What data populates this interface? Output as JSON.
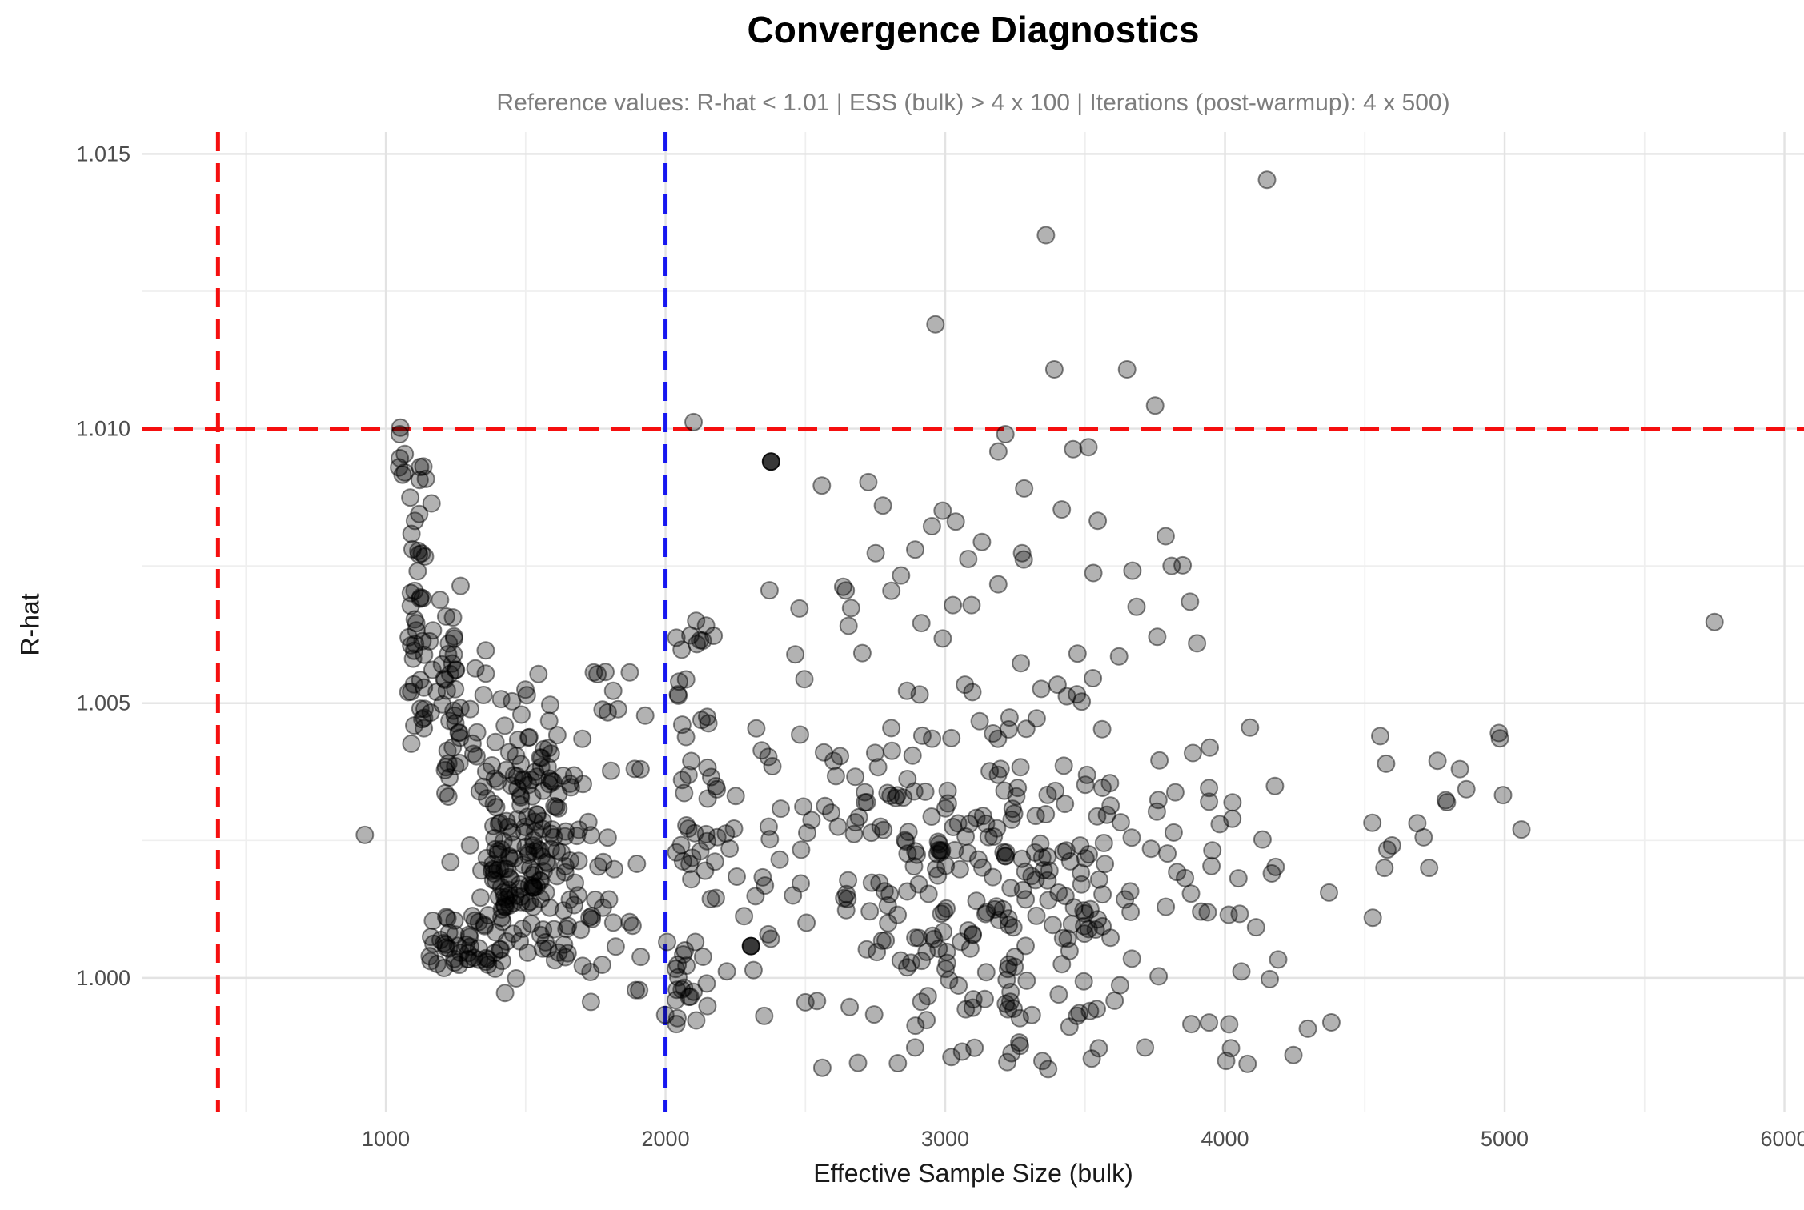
{
  "title": "Convergence Diagnostics",
  "subtitle": "Reference values: R-hat < 1.01 | ESS (bulk) > 4 x 100 | Iterations (post-warmup): 4 x 500)",
  "axes": {
    "x": {
      "label": "Effective Sample Size (bulk)",
      "range": [
        130,
        6070
      ],
      "major_ticks": [
        1000,
        2000,
        3000,
        4000,
        5000,
        6000
      ],
      "minor_ticks": [
        500,
        1500,
        2500,
        3500,
        4500,
        5500
      ]
    },
    "y": {
      "label": "R-hat",
      "range": [
        0.99755,
        1.0154
      ],
      "major_ticks": [
        1.0,
        1.005,
        1.01,
        1.015
      ],
      "major_tick_labels": [
        "1.000",
        "1.005",
        "1.010",
        "1.015"
      ],
      "minor_ticks": [
        1.0025,
        1.0075,
        1.0125
      ]
    }
  },
  "style": {
    "background": "#ffffff",
    "grid_major_color": "#e3e3e3",
    "grid_minor_color": "#efefef",
    "tick_label_color": "#4d4d4d",
    "subtitle_color": "#7d7d7d",
    "ref_red": "#f50f0f",
    "ref_blue": "#1616f0",
    "point_fill": "#000000",
    "point_fill_opacity": 0.3,
    "point_stroke_opacity": 0.48,
    "point_radius": 10.5
  },
  "reference_lines": [
    {
      "id": "ess-min",
      "axis": "x",
      "value": 400,
      "color": "#f50f0f",
      "style": "dashed",
      "meaning": "ESS (bulk) > 4 x 100"
    },
    {
      "id": "rhat-max",
      "axis": "y",
      "value": 1.01,
      "color": "#f50f0f",
      "style": "dashed",
      "meaning": "R-hat < 1.01"
    },
    {
      "id": "iterations",
      "axis": "x",
      "value": 2000,
      "color": "#1616f0",
      "style": "dashed",
      "meaning": "Iterations (post-warmup): 4 x 500"
    }
  ],
  "chart_data": {
    "type": "scatter",
    "title": "Convergence Diagnostics",
    "xlabel": "Effective Sample Size (bulk)",
    "ylabel": "R-hat",
    "xlim": [
      130,
      6070
    ],
    "ylim": [
      0.99755,
      1.0154
    ],
    "grid": true,
    "legend": false,
    "seed": 42,
    "clusters": [
      {
        "name": "left-funnel-top-string",
        "type": "uniform",
        "n": 6,
        "x0": 1042,
        "x1": 1072,
        "y0": 1.0084,
        "y1": 1.0101
      },
      {
        "name": "left-funnel-knot",
        "type": "gauss",
        "n": 9,
        "mx": 1110,
        "sdx": 22,
        "my": 1.00895,
        "sdy": 0.00035
      },
      {
        "name": "left-column-1100",
        "type": "uniform",
        "n": 30,
        "x0": 1085,
        "x1": 1140,
        "y0": 1.0042,
        "y1": 1.0081
      },
      {
        "name": "left-column-1230",
        "type": "uniform",
        "n": 20,
        "x0": 1200,
        "x1": 1270,
        "y0": 1.0032,
        "y1": 1.0066
      },
      {
        "name": "funnel-diagonal-band",
        "type": "band",
        "n": 85,
        "x0": 1130,
        "y0": 1.0063,
        "x1": 1680,
        "y1": 1.0028,
        "jx": 70,
        "jy": 0.00075
      },
      {
        "name": "dense-blob-1500",
        "type": "gauss",
        "n": 130,
        "mx": 1480,
        "sdx": 105,
        "my": 1.00225,
        "sdy": 0.00085,
        "cx0": 1180,
        "cx1": 1900,
        "cy0": 0.9995,
        "cy1": 1.0055
      },
      {
        "name": "dark-bottom-band",
        "type": "uniform",
        "n": 50,
        "x0": 1150,
        "x1": 1440,
        "y0": 1.0001,
        "y1": 1.00115
      },
      {
        "name": "bottom-band-extension",
        "type": "uniform",
        "n": 25,
        "x0": 1440,
        "x1": 1800,
        "y0": 1.0002,
        "y1": 1.0016
      },
      {
        "name": "column-2100",
        "type": "uniform",
        "n": 55,
        "x0": 2030,
        "x1": 2185,
        "y0": 0.999,
        "y1": 1.0067
      },
      {
        "name": "mid-fill",
        "type": "uniform",
        "n": 55,
        "x0": 1680,
        "x1": 2400,
        "y0": 0.999,
        "y1": 1.0056
      },
      {
        "name": "main-cloud",
        "type": "gauss",
        "n": 320,
        "mx": 3150,
        "sdx": 480,
        "my": 1.0019,
        "sdy": 0.00165,
        "cx0": 2300,
        "cx1": 4600,
        "cy0": 0.9983,
        "cy1": 1.0077
      },
      {
        "name": "upper-band",
        "type": "uniform",
        "n": 28,
        "x0": 2350,
        "x1": 3950,
        "y0": 1.0058,
        "y1": 1.0078
      },
      {
        "name": "upper-scatter",
        "type": "uniform",
        "n": 13,
        "x0": 2400,
        "x1": 3900,
        "y0": 1.0078,
        "y1": 1.0097
      },
      {
        "name": "right-sparse",
        "type": "uniform",
        "n": 12,
        "x0": 4500,
        "x1": 5100,
        "y0": 1.0016,
        "y1": 1.0046
      },
      {
        "name": "low-fringe",
        "type": "uniform",
        "n": 18,
        "x0": 2400,
        "x1": 4450,
        "y0": 0.9984,
        "y1": 0.9992
      }
    ],
    "outliers": [
      {
        "ess": 4150,
        "rhat": 1.01453
      },
      {
        "ess": 3360,
        "rhat": 1.01352
      },
      {
        "ess": 2965,
        "rhat": 1.0119
      },
      {
        "ess": 3390,
        "rhat": 1.01108
      },
      {
        "ess": 3650,
        "rhat": 1.01108
      },
      {
        "ess": 3750,
        "rhat": 1.01042
      },
      {
        "ess": 2100,
        "rhat": 1.01012
      },
      {
        "ess": 1052,
        "rhat": 1.01002
      },
      {
        "ess": 3215,
        "rhat": 1.0099
      },
      {
        "ess": 2377,
        "rhat": 1.0094,
        "dark": true
      },
      {
        "ess": 2777,
        "rhat": 1.0086
      },
      {
        "ess": 5750,
        "rhat": 1.00648
      },
      {
        "ess": 4555,
        "rhat": 1.0044
      },
      {
        "ess": 4840,
        "rhat": 1.0038
      },
      {
        "ess": 5060,
        "rhat": 1.0027
      },
      {
        "ess": 925,
        "rhat": 1.0026
      },
      {
        "ess": 4730,
        "rhat": 1.002
      },
      {
        "ess": 4570,
        "rhat": 1.002
      },
      {
        "ess": 2305,
        "rhat": 1.00058,
        "dark": true
      }
    ]
  }
}
